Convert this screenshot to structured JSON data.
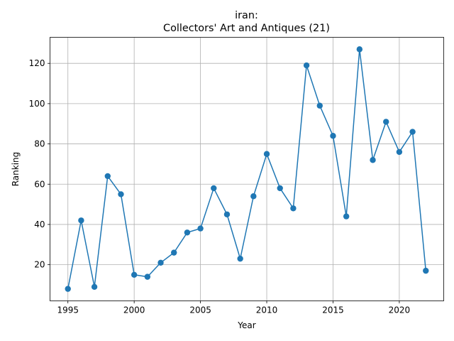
{
  "chart_data": {
    "type": "line",
    "title": "iran:",
    "subtitle": "Collectors' Art and Antiques (21)",
    "xlabel": "Year",
    "ylabel": "Ranking",
    "x_ticks": [
      1995,
      2000,
      2005,
      2010,
      2015,
      2020
    ],
    "y_ticks": [
      20,
      40,
      60,
      80,
      100,
      120
    ],
    "xlim": [
      1993.65,
      2023.35
    ],
    "ylim": [
      2.05,
      132.95
    ],
    "grid": true,
    "marker": "circle",
    "color": "#1f77b4",
    "series": [
      {
        "x": [
          1995,
          1996,
          1997,
          1998,
          1999,
          2000,
          2001,
          2002,
          2003,
          2004,
          2005,
          2006,
          2007,
          2008,
          2009,
          2010,
          2011,
          2012,
          2013,
          2014,
          2015,
          2016,
          2017,
          2018,
          2019,
          2020,
          2021,
          2022
        ],
        "values": [
          8,
          42,
          9,
          64,
          55,
          15,
          14,
          21,
          26,
          36,
          38,
          58,
          45,
          23,
          54,
          75,
          58,
          48,
          119,
          99,
          84,
          44,
          127,
          72,
          91,
          76,
          86,
          17
        ]
      }
    ]
  }
}
